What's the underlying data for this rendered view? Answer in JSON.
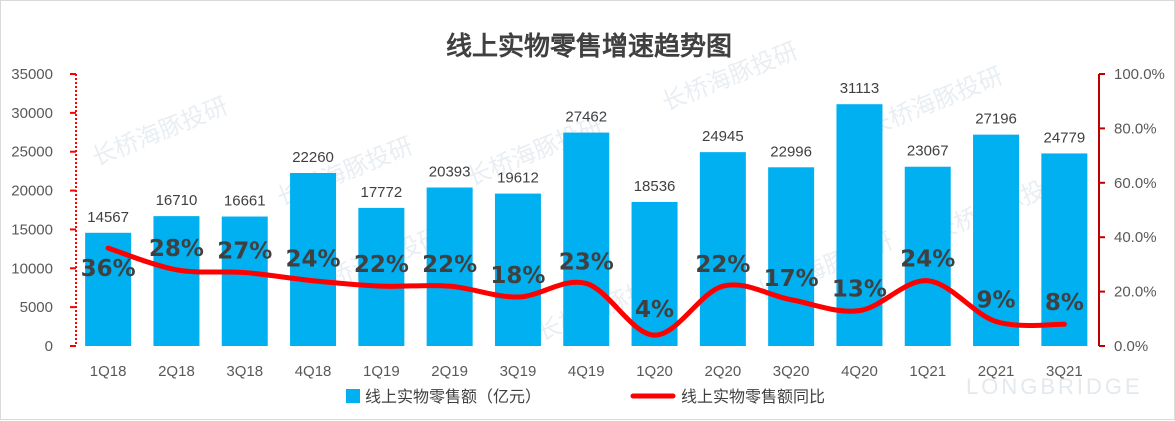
{
  "chart_data": {
    "type": "bar",
    "title": "线上实物零售增速趋势图",
    "categories": [
      "1Q18",
      "2Q18",
      "3Q18",
      "4Q18",
      "1Q19",
      "2Q19",
      "3Q19",
      "4Q19",
      "1Q20",
      "2Q20",
      "3Q20",
      "4Q20",
      "1Q21",
      "2Q21",
      "3Q21"
    ],
    "series": [
      {
        "name": "线上实物零售额（亿元）",
        "type": "bar",
        "axis": "left",
        "color": "#00b0f0",
        "values": [
          14567,
          16710,
          16661,
          22260,
          17772,
          20393,
          19612,
          27462,
          18536,
          24945,
          22996,
          31113,
          23067,
          27196,
          24779
        ]
      },
      {
        "name": "线上实物零售额同比",
        "type": "line",
        "axis": "right",
        "color": "#ff0000",
        "values": [
          36,
          28,
          27,
          24,
          22,
          22,
          18,
          23,
          4,
          22,
          17,
          13,
          24,
          9,
          8
        ],
        "labels": [
          "36%",
          "28%",
          "27%",
          "24%",
          "22%",
          "22%",
          "18%",
          "23%",
          "4%",
          "22%",
          "17%",
          "13%",
          "24%",
          "9%",
          "8%"
        ]
      }
    ],
    "y_left": {
      "min": 0,
      "max": 35000,
      "step": 5000,
      "ticks": [
        "0",
        "5000",
        "10000",
        "15000",
        "20000",
        "25000",
        "30000",
        "35000"
      ],
      "axis_color": "#ff0000"
    },
    "y_right": {
      "min": 0,
      "max": 100,
      "step": 20,
      "ticks": [
        "0.0%",
        "20.0%",
        "40.0%",
        "60.0%",
        "80.0%",
        "100.0%"
      ],
      "axis_color": "#c00000"
    },
    "grid": false,
    "legend_position": "bottom"
  },
  "watermark": {
    "text": "长桥海豚投研",
    "brand": "LONGBRIDGE"
  }
}
